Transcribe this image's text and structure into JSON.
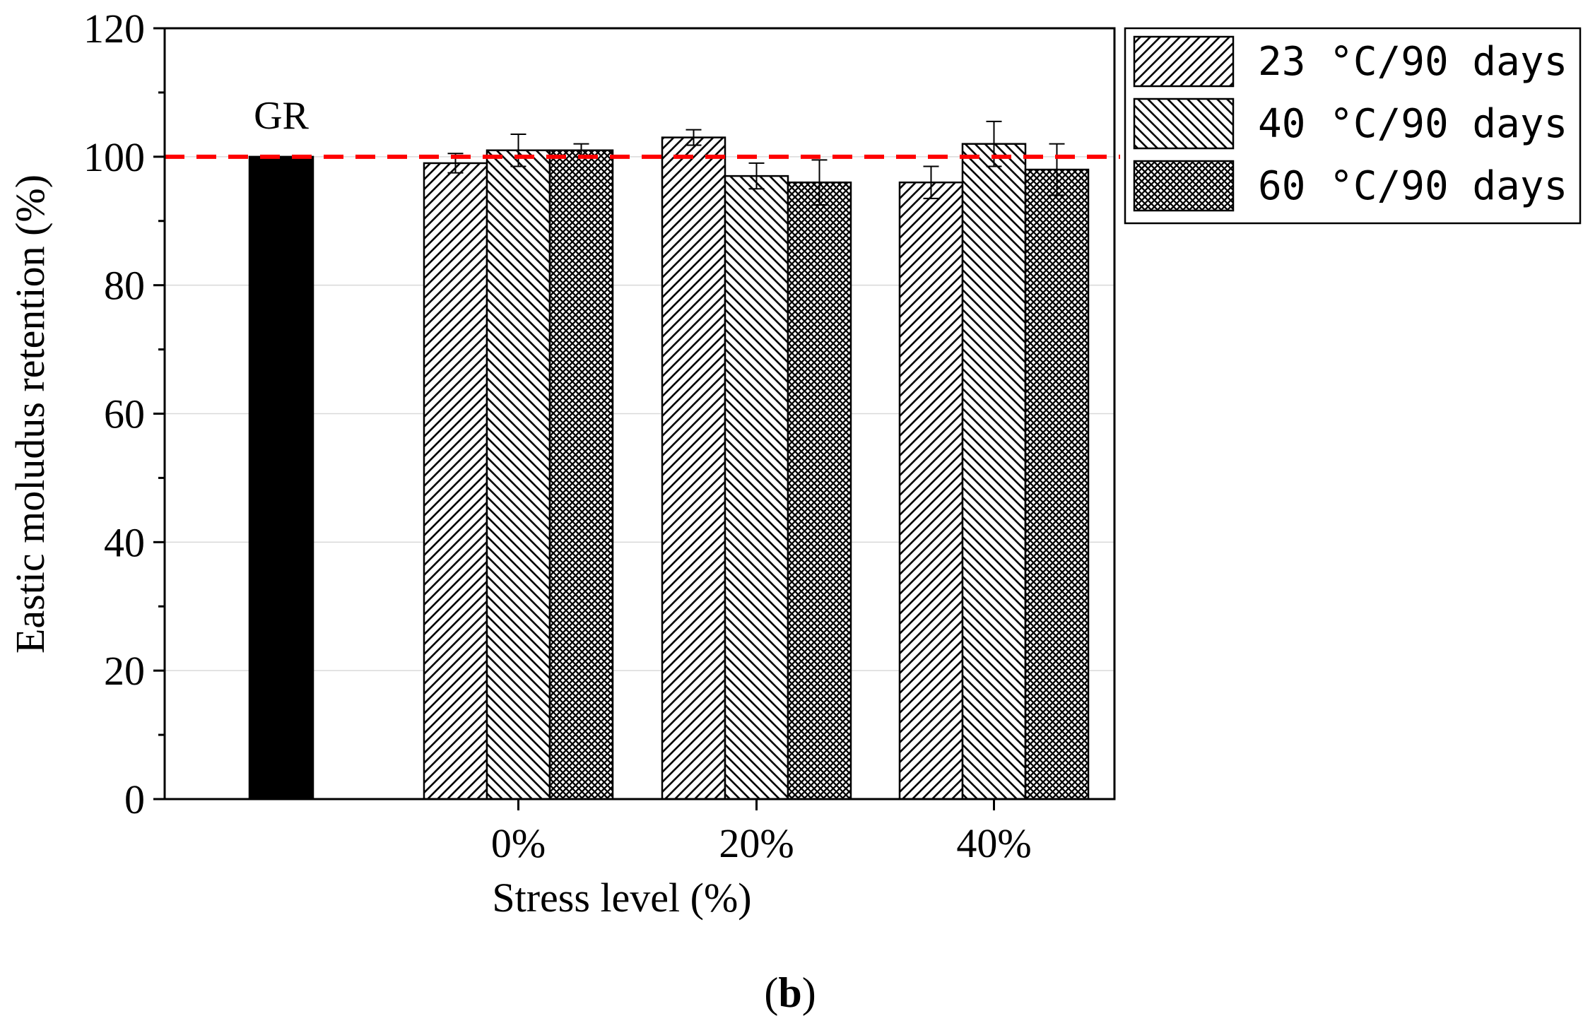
{
  "chart_data": {
    "type": "bar",
    "figure_label_prefix": "(",
    "figure_label": "b",
    "figure_label_suffix": ")",
    "xlabel": "Stress level (%)",
    "ylabel": "Eastic moludus retention (%)",
    "ylim": [
      0,
      120
    ],
    "yticks": [
      "0",
      "20",
      "40",
      "60",
      "80",
      "100",
      "120"
    ],
    "reference": {
      "label": "GR",
      "value": 100
    },
    "reference_line": {
      "value": 100,
      "color": "#ff0000"
    },
    "categories": [
      "0%",
      "20%",
      "40%"
    ],
    "series": [
      {
        "name": "23 °C/90  days",
        "pattern": "hatch-right",
        "values": [
          99,
          103,
          96
        ],
        "errors": [
          1.5,
          1.2,
          2.5
        ]
      },
      {
        "name": "40 °C/90  days",
        "pattern": "hatch-left",
        "values": [
          101,
          97,
          102
        ],
        "errors": [
          2.5,
          2.0,
          3.5
        ]
      },
      {
        "name": "60 °C/90  days",
        "pattern": "crosshatch",
        "values": [
          101,
          96,
          98
        ],
        "errors": [
          1.0,
          3.5,
          4.0
        ]
      }
    ],
    "grid": true,
    "legend_position": "top-right outside"
  }
}
